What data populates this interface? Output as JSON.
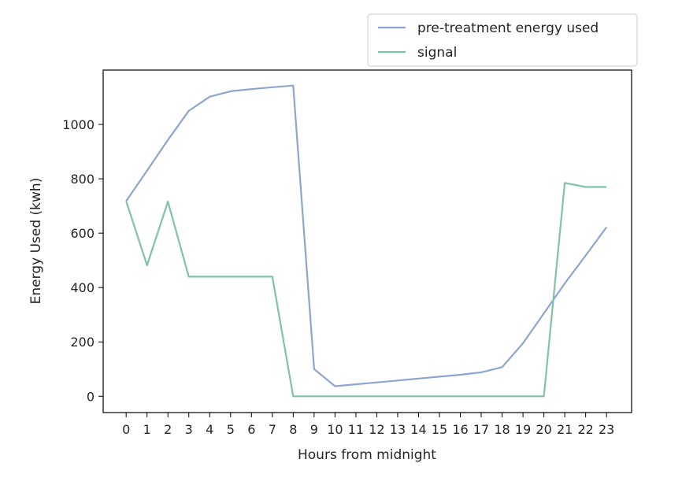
{
  "chart_data": {
    "type": "line",
    "title": "",
    "xlabel": "Hours from midnight",
    "ylabel": "Energy Used (kwh)",
    "x": [
      0,
      1,
      2,
      3,
      4,
      5,
      6,
      7,
      8,
      9,
      10,
      11,
      12,
      13,
      14,
      15,
      16,
      17,
      18,
      19,
      20,
      21,
      22,
      23
    ],
    "xticks": [
      "0",
      "1",
      "2",
      "3",
      "4",
      "5",
      "6",
      "7",
      "8",
      "9",
      "10",
      "11",
      "12",
      "13",
      "14",
      "15",
      "16",
      "17",
      "18",
      "19",
      "20",
      "21",
      "22",
      "23"
    ],
    "yticks": [
      0,
      200,
      400,
      600,
      800,
      1000
    ],
    "xlim": [
      -1.1,
      24.2
    ],
    "ylim": [
      -60,
      1200
    ],
    "grid": false,
    "legend_position": "top-right (above plot)",
    "series": [
      {
        "name": "pre-treatment energy used",
        "color": "#8fa4d0",
        "values": [
          718,
          830,
          943,
          1050,
          1102,
          1122,
          1130,
          1137,
          1143,
          100,
          37,
          44,
          51,
          58,
          65,
          72,
          79,
          88,
          107,
          195,
          305,
          415,
          518,
          622
        ]
      },
      {
        "name": "signal",
        "color": "#7fc4a4",
        "values": [
          718,
          482,
          716,
          440,
          440,
          440,
          440,
          440,
          0,
          0,
          0,
          0,
          0,
          0,
          0,
          0,
          0,
          0,
          0,
          0,
          0,
          785,
          770,
          770
        ]
      }
    ]
  }
}
